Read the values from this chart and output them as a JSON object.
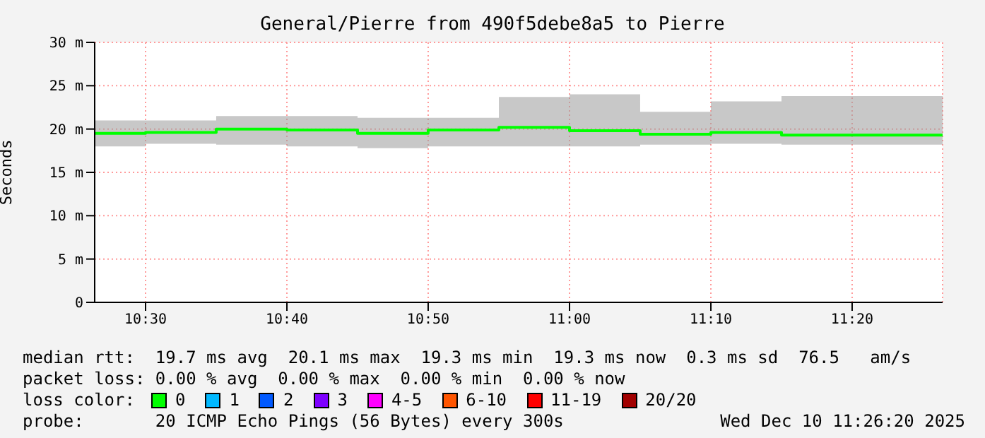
{
  "chart_data": {
    "type": "step",
    "title": "General/Pierre from 490f5debe8a5 to Pierre",
    "ylabel": "Seconds",
    "x": [
      10.44,
      10.5,
      10.5833,
      10.6667,
      10.75,
      10.8333,
      10.9167,
      11.0,
      11.0833,
      11.1667,
      11.25,
      11.44
    ],
    "xlim": [
      10.44,
      11.44
    ],
    "xticks": [
      {
        "value": 10.5,
        "label": "10:30"
      },
      {
        "value": 10.6667,
        "label": "10:40"
      },
      {
        "value": 10.8333,
        "label": "10:50"
      },
      {
        "value": 11.0,
        "label": "11:00"
      },
      {
        "value": 11.1667,
        "label": "11:10"
      },
      {
        "value": 11.3333,
        "label": "11:20"
      }
    ],
    "ylim": [
      0,
      30
    ],
    "yticks": [
      0,
      {
        "value": 5,
        "label": "5 m"
      },
      {
        "value": 10,
        "label": "10 m"
      },
      {
        "value": 15,
        "label": "15 m"
      },
      {
        "value": 20,
        "label": "20 m"
      },
      {
        "value": 25,
        "label": "25 m"
      },
      {
        "value": 30,
        "label": "30 m"
      }
    ],
    "grid": true,
    "legend": "bottom",
    "legend_title": "loss color:",
    "series": [
      {
        "name": "0",
        "color": "#00ff00",
        "values": [
          19.5,
          19.6,
          20.0,
          19.9,
          19.5,
          19.9,
          20.2,
          19.8,
          19.4,
          19.6,
          19.3,
          19.3
        ],
        "lower": [
          18.0,
          18.3,
          18.2,
          18.0,
          17.8,
          18.0,
          18.0,
          18.0,
          18.2,
          18.3,
          18.2,
          18.2
        ],
        "upper": [
          21.0,
          21.0,
          21.5,
          21.5,
          21.3,
          21.3,
          23.7,
          24.0,
          22.0,
          23.2,
          23.8,
          23.8
        ]
      },
      {
        "name": "1",
        "color": "#00b8ff",
        "values": [
          null,
          null,
          null,
          null,
          null,
          null,
          null,
          null,
          null,
          null,
          null,
          null
        ]
      },
      {
        "name": "2",
        "color": "#0059ff",
        "values": [
          null,
          null,
          null,
          null,
          null,
          null,
          null,
          null,
          null,
          null,
          null,
          null
        ]
      },
      {
        "name": "3",
        "color": "#7e00ff",
        "values": [
          null,
          null,
          null,
          null,
          null,
          null,
          null,
          null,
          null,
          null,
          null,
          null
        ]
      },
      {
        "name": "4-5",
        "color": "#ff00ff",
        "values": [
          null,
          null,
          null,
          null,
          null,
          null,
          null,
          null,
          null,
          null,
          null,
          null
        ]
      },
      {
        "name": "6-10",
        "color": "#ff5500",
        "values": [
          null,
          null,
          null,
          null,
          null,
          null,
          null,
          null,
          null,
          null,
          null,
          null
        ]
      },
      {
        "name": "11-19",
        "color": "#ff0000",
        "values": [
          null,
          null,
          null,
          null,
          null,
          null,
          null,
          null,
          null,
          null,
          null,
          null
        ]
      },
      {
        "name": "20/20",
        "color": "#a10000",
        "values": [
          null,
          null,
          null,
          null,
          null,
          null,
          null,
          null,
          null,
          null,
          null,
          null
        ]
      }
    ],
    "annotations": [
      "median rtt:  19.7 ms avg  20.1 ms max  19.3 ms min  19.3 ms now  0.3 ms sd  76.5   am/s",
      "packet loss: 0.00 % avg  0.00 % max  0.00 % min  0.00 % now",
      "probe:       20 ICMP Echo Pings (56 Bytes) every 300s",
      "Wed Dec 10 11:26:20 2025"
    ]
  }
}
